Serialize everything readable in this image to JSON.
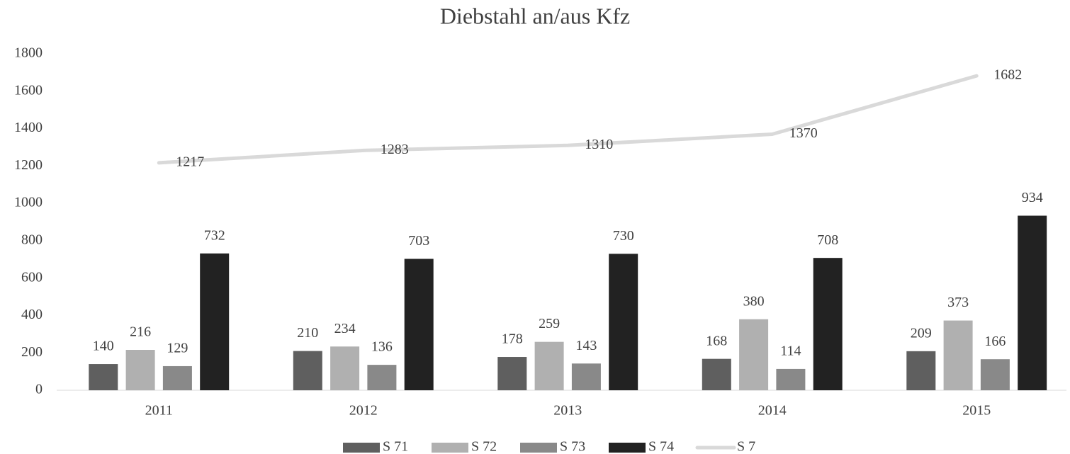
{
  "chart_data": {
    "type": "bar",
    "title": "Diebstahl an/aus Kfz",
    "categories": [
      "2011",
      "2012",
      "2013",
      "2014",
      "2015"
    ],
    "series": [
      {
        "name": "S 71",
        "color": "#5f5f5f",
        "values": [
          140,
          210,
          178,
          168,
          209
        ]
      },
      {
        "name": "S 72",
        "color": "#b0b0b0",
        "values": [
          216,
          234,
          259,
          380,
          373
        ]
      },
      {
        "name": "S 73",
        "color": "#898989",
        "values": [
          129,
          136,
          143,
          114,
          166
        ]
      },
      {
        "name": "S 74",
        "color": "#222222",
        "values": [
          732,
          703,
          730,
          708,
          934
        ]
      },
      {
        "name": "S 7",
        "color": "#d9d9d9",
        "type": "line",
        "values": [
          1217,
          1283,
          1310,
          1370,
          1682
        ]
      }
    ],
    "ylim": [
      0,
      1800
    ],
    "yticks": [
      0,
      200,
      400,
      600,
      800,
      1000,
      1200,
      1400,
      1600,
      1800
    ],
    "grid": false,
    "legend": "bottom"
  }
}
